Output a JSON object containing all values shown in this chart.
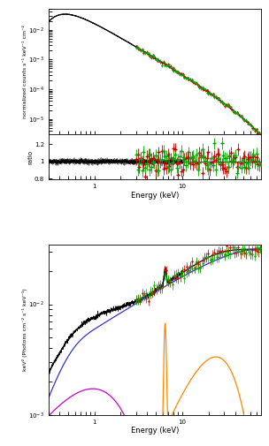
{
  "top_panel": {
    "xlim": [
      0.3,
      79
    ],
    "ylim_main": [
      3e-06,
      0.05
    ],
    "ylim_ratio": [
      0.79,
      1.31
    ],
    "ylabel_main": "normalized counts s⁻¹ keV⁻¹ cm⁻²",
    "ylabel_ratio": "ratio",
    "xlabel": "Energy (keV)"
  },
  "bottom_panel": {
    "xlim": [
      0.3,
      79
    ],
    "ylim": [
      0.001,
      0.035
    ],
    "ylabel": "keV² (Photons cm⁻² s⁻¹ keV⁻¹)",
    "xlabel": "Energy (keV)"
  },
  "colors": {
    "black": "#000000",
    "red": "#cc0000",
    "green": "#00aa00",
    "blue": "#3333cc",
    "magenta": "#cc00cc",
    "orange": "#ff8800"
  }
}
